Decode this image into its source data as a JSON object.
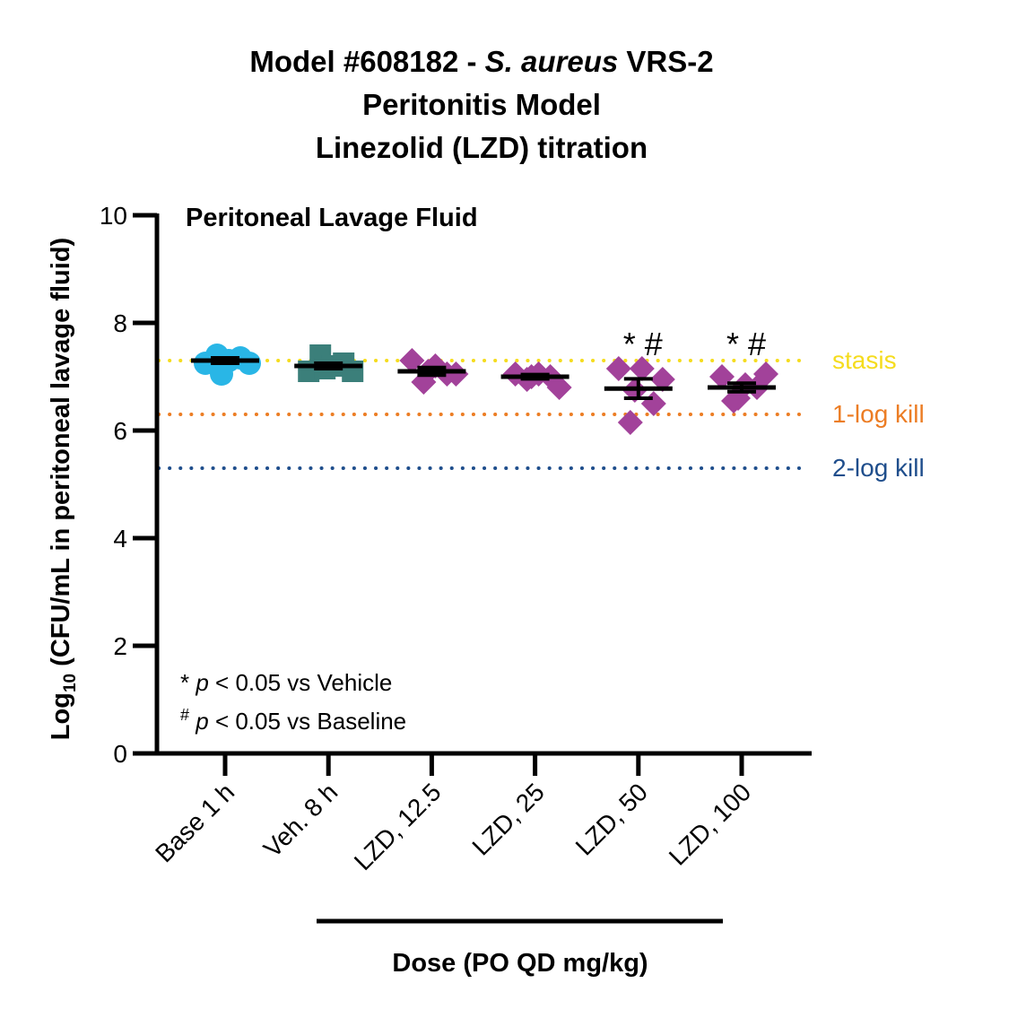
{
  "chart_data": {
    "type": "scatter",
    "title": {
      "line1_prefix": "Model #608182 - ",
      "line1_italic": "S. aureus",
      "line1_suffix": " VRS-2",
      "line2": "Peritonitis Model",
      "line3": "Linezolid (LZD) titration"
    },
    "panel_title": "Peritoneal Lavage Fluid",
    "ylabel": {
      "prefix": "Log",
      "subscript": "10",
      "suffix": " (CFU/mL in peritoneal lavage fluid)"
    },
    "xlabel": "Dose (PO QD mg/kg)",
    "ylim": [
      0,
      10
    ],
    "yticks": [
      "0",
      "2",
      "4",
      "6",
      "8",
      "10"
    ],
    "categories": [
      "Base 1 h",
      "Veh. 8 h",
      "LZD, 12.5",
      "LZD, 25",
      "LZD, 50",
      "LZD, 100"
    ],
    "groups": [
      {
        "category": "Base 1 h",
        "marker": "circle",
        "color": "#29b6e6",
        "points": [
          7.25,
          7.4,
          7.3,
          7.35,
          7.25,
          7.05
        ],
        "mean": 7.3,
        "sem": 0.05
      },
      {
        "category": "Veh. 8 h",
        "marker": "square",
        "color": "#3b7f7a",
        "points": [
          7.1,
          7.4,
          7.2,
          7.25,
          7.1,
          7.15
        ],
        "mean": 7.2,
        "sem": 0.05
      },
      {
        "category": "LZD, 12.5",
        "marker": "diamond",
        "color": "#a2429a",
        "points": [
          7.3,
          6.9,
          7.2,
          7.05,
          7.05,
          7.1
        ],
        "mean": 7.1,
        "sem": 0.07
      },
      {
        "category": "LZD, 25",
        "marker": "diamond",
        "color": "#a2429a",
        "points": [
          7.05,
          6.95,
          7.05,
          7.0,
          6.8,
          7.0
        ],
        "mean": 7.0,
        "sem": 0.04
      },
      {
        "category": "LZD, 50",
        "marker": "diamond",
        "color": "#a2429a",
        "points": [
          7.15,
          6.15,
          7.15,
          6.5,
          6.95,
          6.75
        ],
        "mean": 6.78,
        "sem": 0.18
      },
      {
        "category": "LZD, 100",
        "marker": "diamond",
        "color": "#a2429a",
        "points": [
          7.0,
          6.55,
          6.85,
          6.8,
          7.05,
          6.6
        ],
        "mean": 6.8,
        "sem": 0.08
      }
    ],
    "reference_lines": [
      {
        "label": "stasis",
        "y": 7.3,
        "color": "#f5dc1e"
      },
      {
        "label": "1-log kill",
        "y": 6.3,
        "color": "#ec7d24"
      },
      {
        "label": "2-log kill",
        "y": 5.3,
        "color": "#1f4e8c"
      }
    ],
    "significance": [
      {
        "category": "LZD, 50",
        "label": "* #"
      },
      {
        "category": "LZD, 100",
        "label": "* #"
      }
    ],
    "notes": [
      {
        "symbol": "*",
        "p": "p",
        "text": " < 0.05 vs Vehicle"
      },
      {
        "symbol": "#",
        "p": "p",
        "text": " < 0.05 vs Baseline"
      }
    ]
  }
}
